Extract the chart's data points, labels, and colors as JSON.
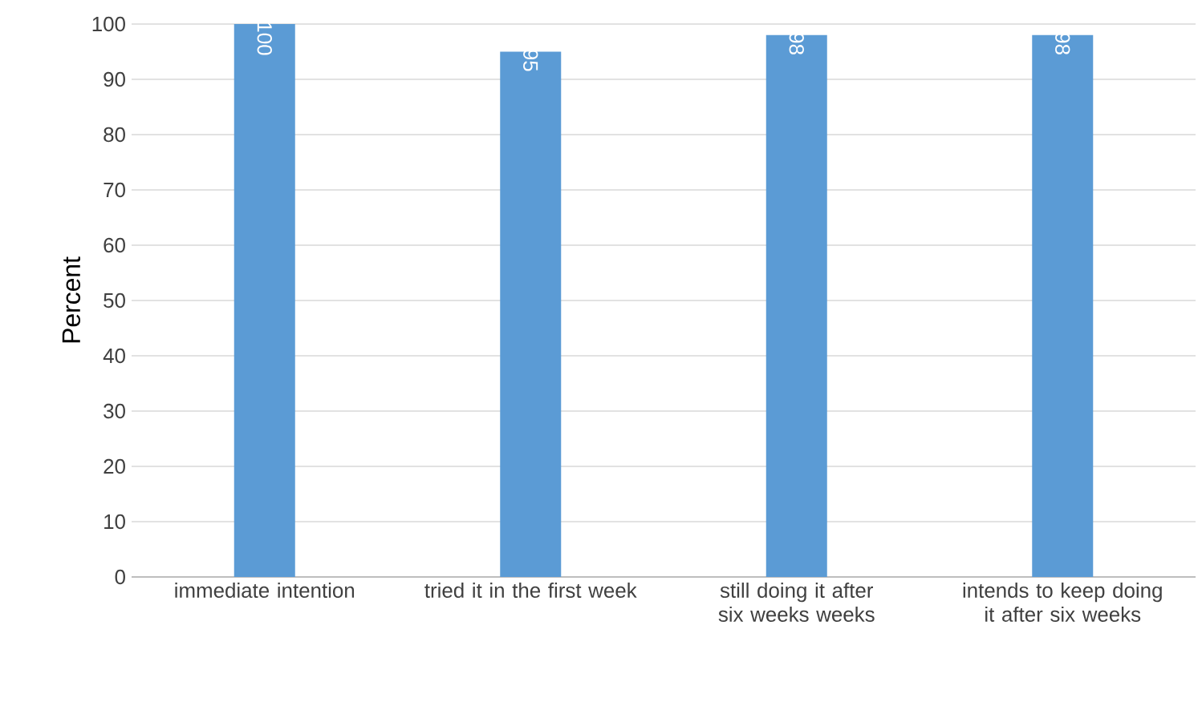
{
  "chart_data": {
    "type": "bar",
    "ylabel": "Percent",
    "categories": [
      "immediate intention",
      "tried it in the first week",
      "still doing it after six weeks weeks",
      "intends to keep doing it after six weeks"
    ],
    "values": [
      100,
      95,
      98,
      98
    ],
    "color": "#5b9bd5",
    "data_labels": true,
    "ylim": [
      0,
      100
    ],
    "yticks": [
      0,
      10,
      20,
      30,
      40,
      50,
      60,
      70,
      80,
      90,
      100
    ],
    "grid": "y"
  }
}
